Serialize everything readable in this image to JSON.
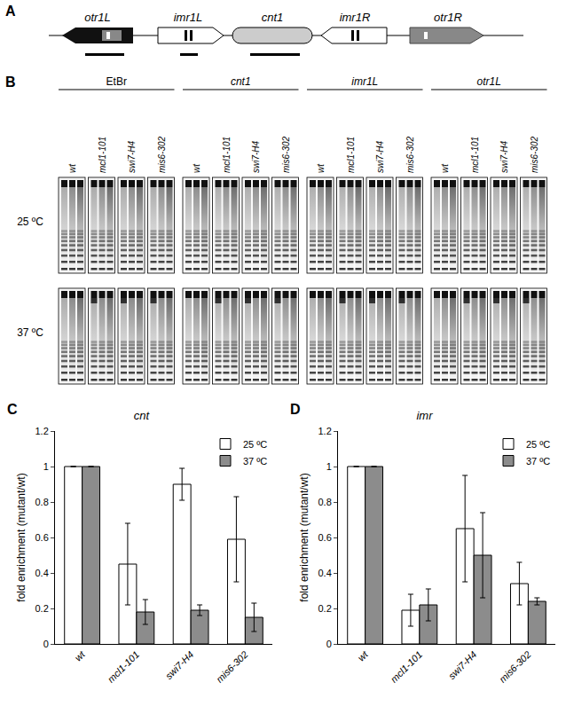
{
  "panel_labels": [
    "A",
    "B",
    "C",
    "D"
  ],
  "diagram": {
    "elements": [
      "otr1L",
      "imr1L",
      "cnt1",
      "imr1R",
      "otr1R"
    ]
  },
  "gels": {
    "groups": [
      "EtBr",
      "cnt1",
      "imr1L",
      "otr1L"
    ],
    "strains": [
      "wt",
      "mcl1-101",
      "swi7-H4",
      "mis6-302"
    ],
    "temperatures": [
      "25 ºC",
      "37 ºC"
    ]
  },
  "chart_data": [
    {
      "type": "bar",
      "title": "cnt",
      "categories": [
        "wt",
        "mcl1-101",
        "swi7-H4",
        "mis6-302"
      ],
      "series": [
        {
          "name": "25 ºC",
          "color": "#ffffff",
          "values": [
            1,
            0.45,
            0.9,
            0.59
          ],
          "error": [
            null,
            0.23,
            0.09,
            0.24
          ]
        },
        {
          "name": "37 ºC",
          "color": "#8c8c8c",
          "values": [
            1,
            0.18,
            0.19,
            0.15
          ],
          "error": [
            null,
            0.07,
            0.03,
            0.08
          ]
        }
      ],
      "y_label": "fold enrichment (mutant/wt)",
      "ylim": [
        0,
        1.2
      ],
      "yticks": [
        0,
        0.2,
        0.4,
        0.6,
        0.8,
        1,
        1.2
      ],
      "legend": "upper right"
    },
    {
      "type": "bar",
      "title": "imr",
      "categories": [
        "wt",
        "mcl1-101",
        "swi7-H4",
        "mis6-302"
      ],
      "series": [
        {
          "name": "25 ºC",
          "color": "#ffffff",
          "values": [
            1,
            0.19,
            0.65,
            0.34
          ],
          "error": [
            null,
            0.09,
            0.3,
            0.12
          ]
        },
        {
          "name": "37 ºC",
          "color": "#8c8c8c",
          "values": [
            1,
            0.22,
            0.5,
            0.24
          ],
          "error": [
            null,
            0.09,
            0.24,
            0.02
          ]
        }
      ],
      "y_label": "fold enrichment (mutant/wt)",
      "ylim": [
        0,
        1.2
      ],
      "yticks": [
        0,
        0.2,
        0.4,
        0.6,
        0.8,
        1,
        1.2
      ],
      "legend": "upper right"
    }
  ]
}
